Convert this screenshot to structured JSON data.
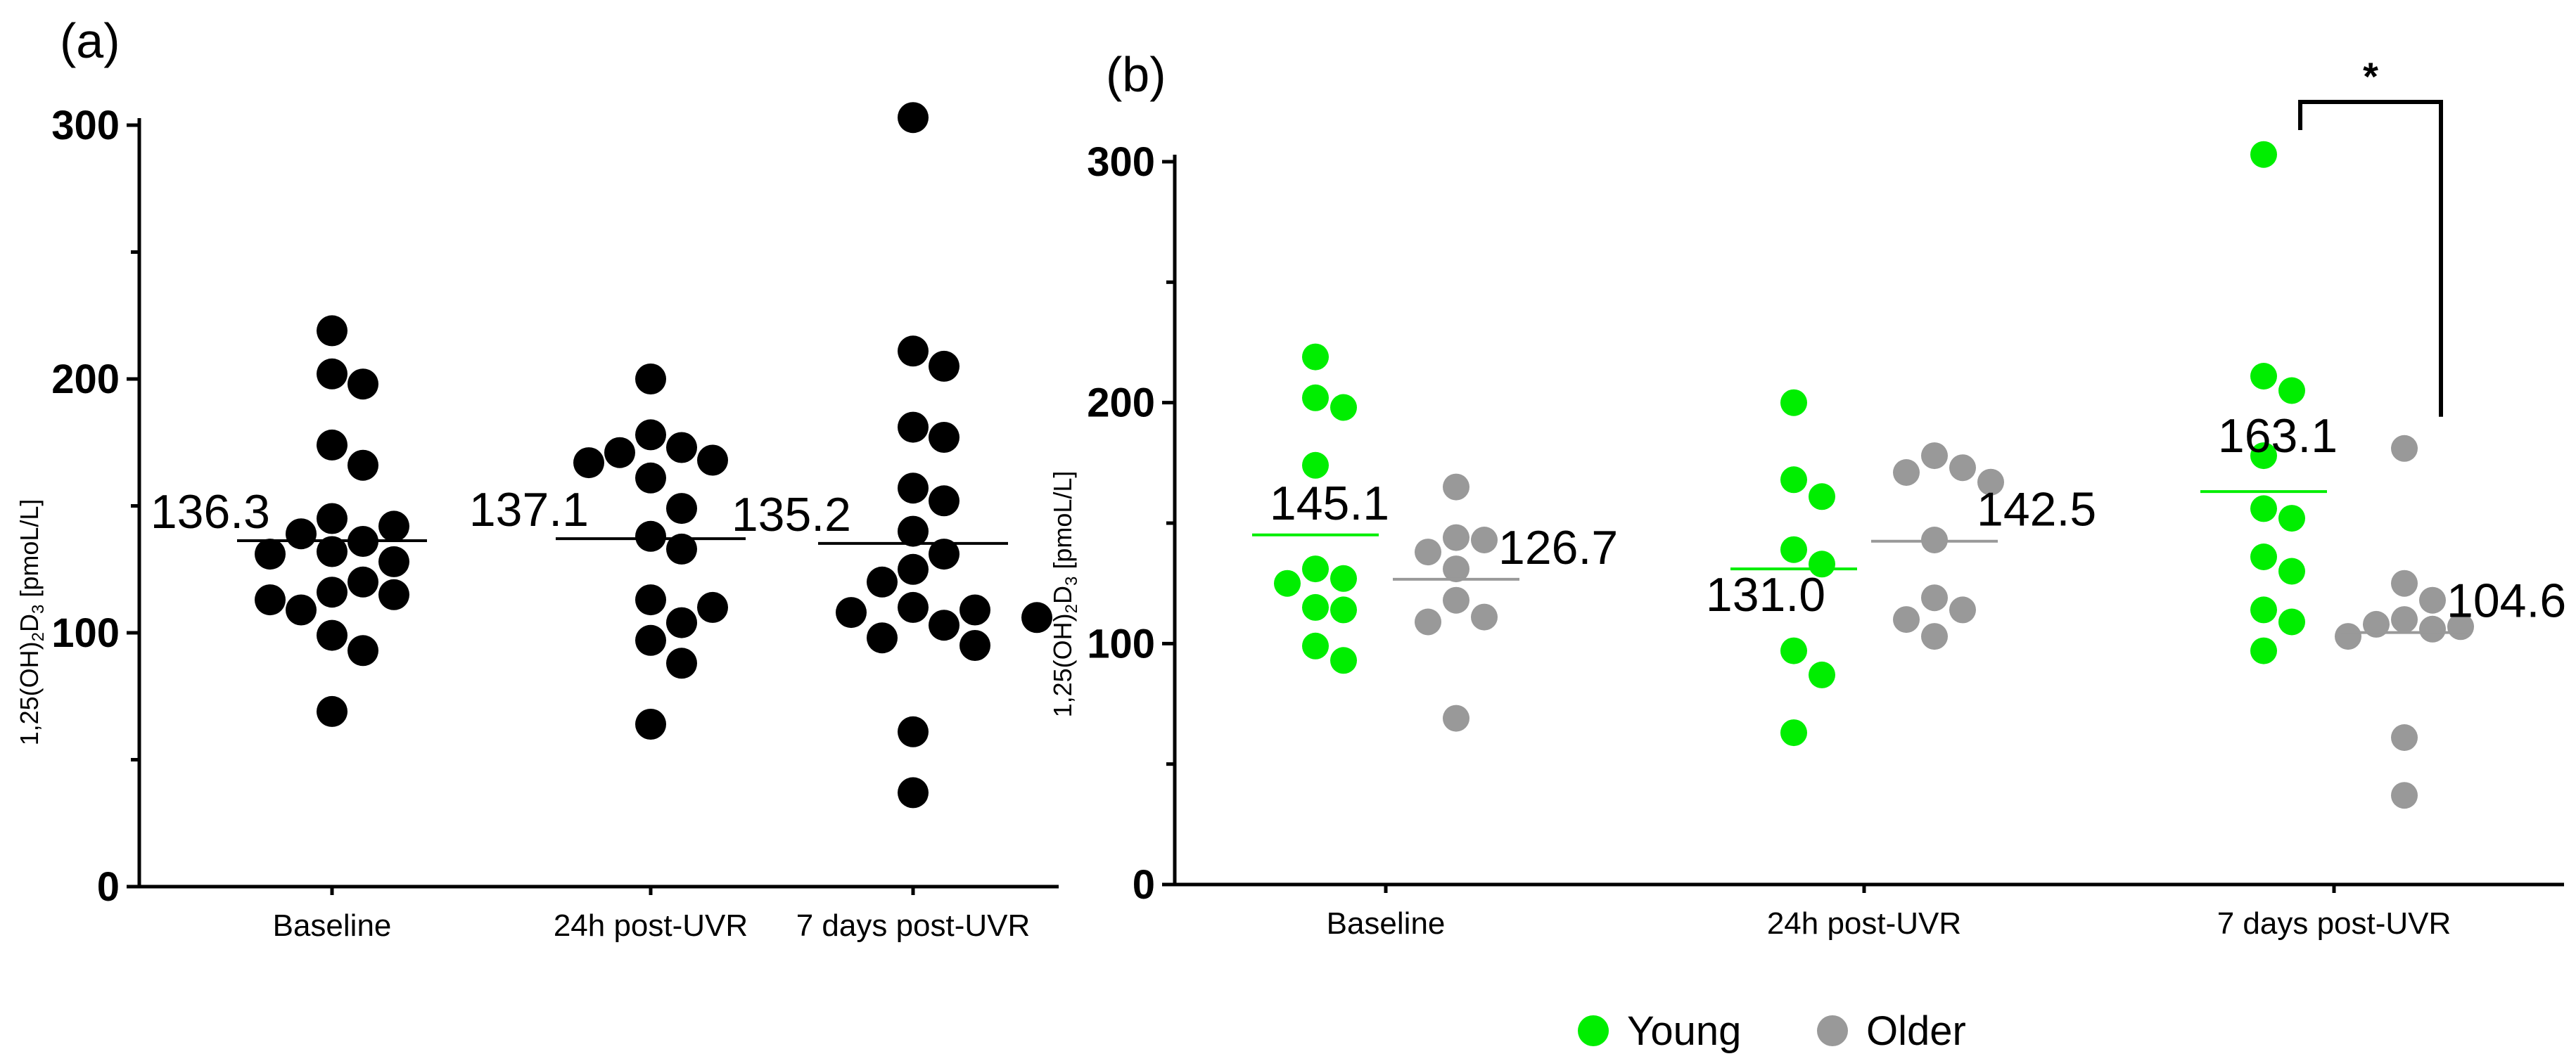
{
  "colors": {
    "young": "#00ee00",
    "older": "#999999",
    "all": "#000000"
  },
  "chart_data": [
    {
      "type": "scatter",
      "panel": "(a)",
      "ylabel": "1,25(OH)2D3 [pmoL/L]",
      "ylabel_parts": [
        "1,25(OH)",
        "2",
        "D",
        "3",
        " [pmoL/L]"
      ],
      "ylim": [
        0,
        300
      ],
      "yticks": [
        0,
        100,
        200,
        300
      ],
      "categories": [
        "Baseline",
        "24h post-UVR",
        "7 days post-UVR"
      ],
      "groups": [
        {
          "category": "Baseline",
          "mean": 136.3,
          "mean_label": "136.3",
          "values": [
            219,
            202,
            198,
            174,
            166,
            145,
            142,
            139,
            136,
            132,
            131,
            128,
            120,
            116,
            115,
            113,
            109,
            99,
            93,
            69
          ]
        },
        {
          "category": "24h post-UVR",
          "mean": 137.1,
          "mean_label": "137.1",
          "values": [
            200,
            178,
            173,
            171,
            168,
            167,
            161,
            149,
            138,
            133,
            113,
            110,
            104,
            97,
            88,
            64
          ]
        },
        {
          "category": "7 days post-UVR",
          "mean": 135.2,
          "mean_label": "135.2",
          "values": [
            303,
            211,
            205,
            181,
            177,
            157,
            152,
            140,
            131,
            125,
            120,
            110,
            109,
            108,
            106,
            103,
            98,
            95,
            61,
            37
          ]
        }
      ]
    },
    {
      "type": "scatter",
      "panel": "(b)",
      "ylabel": "1,25(OH)2D3 [pmoL/L]",
      "ylabel_parts": [
        "1,25(OH)",
        "2",
        "D",
        "3",
        " [pmoL/L]"
      ],
      "ylim": [
        0,
        300
      ],
      "yticks": [
        0,
        100,
        200,
        300
      ],
      "categories": [
        "Baseline",
        "24h post-UVR",
        "7 days post-UVR"
      ],
      "series": [
        {
          "name": "Young",
          "color": "#00ee00",
          "groups": [
            {
              "category": "Baseline",
              "mean": 145.1,
              "mean_label": "145.1",
              "values": [
                219,
                202,
                198,
                174,
                131,
                127,
                125,
                115,
                114,
                99,
                93
              ]
            },
            {
              "category": "24h post-UVR",
              "mean": 131.0,
              "mean_label": "131.0",
              "values": [
                200,
                168,
                161,
                139,
                133,
                97,
                87,
                63
              ]
            },
            {
              "category": "7 days post-UVR",
              "mean": 163.1,
              "mean_label": "163.1",
              "values": [
                303,
                211,
                205,
                178,
                156,
                152,
                136,
                130,
                114,
                109,
                97
              ]
            }
          ]
        },
        {
          "name": "Older",
          "color": "#999999",
          "groups": [
            {
              "category": "Baseline",
              "mean": 126.7,
              "mean_label": "126.7",
              "values": [
                165,
                144,
                143,
                138,
                131,
                118,
                111,
                109,
                69
              ]
            },
            {
              "category": "24h post-UVR",
              "mean": 142.5,
              "mean_label": "142.5",
              "values": [
                178,
                173,
                171,
                167,
                143,
                119,
                114,
                110,
                103
              ]
            },
            {
              "category": "7 days post-UVR",
              "mean": 104.6,
              "mean_label": "104.6",
              "values": [
                181,
                125,
                118,
                110,
                108,
                107,
                106,
                103,
                61,
                37
              ]
            }
          ]
        }
      ],
      "legend": [
        "Young",
        "Older"
      ],
      "significance": {
        "label": "*",
        "between": [
          "Young 7 days post-UVR",
          "Older 7 days post-UVR"
        ]
      }
    }
  ]
}
